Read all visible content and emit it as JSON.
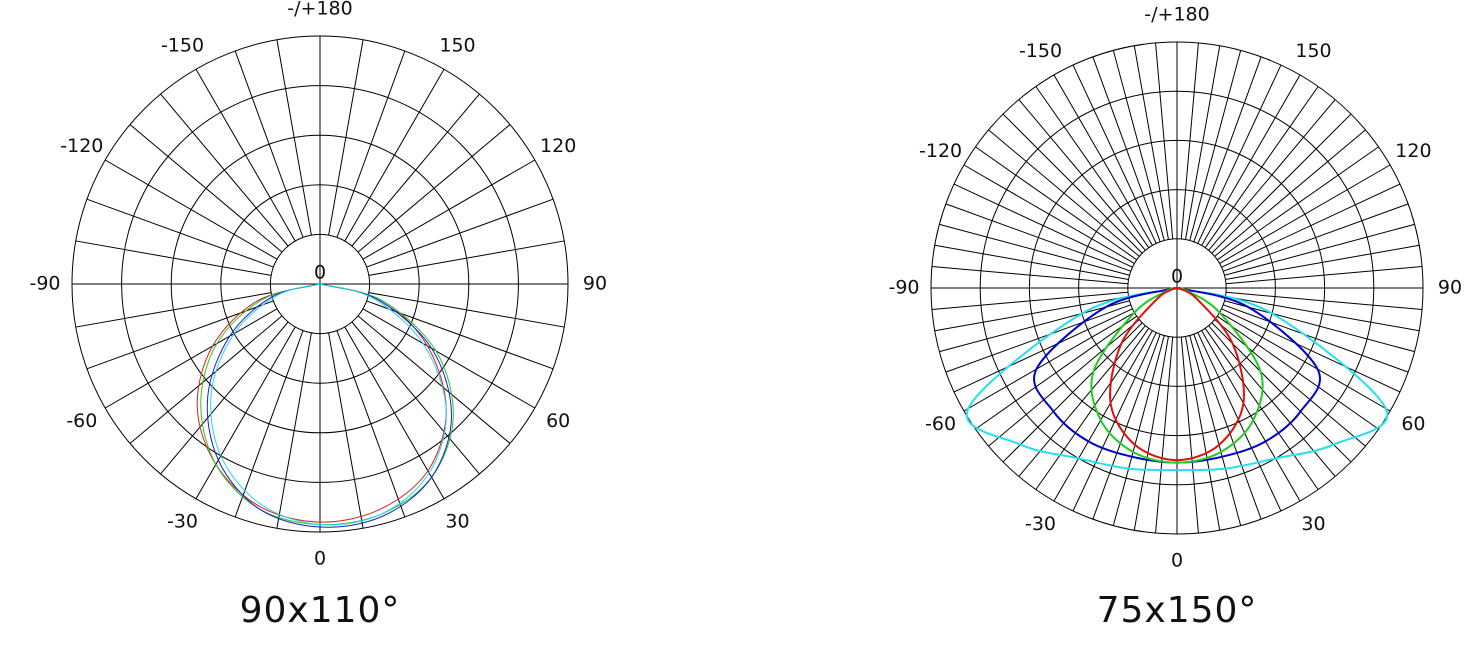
{
  "chart_data": [
    {
      "type": "polar",
      "title": "90x110°",
      "center_label": "0",
      "rlim": [
        0,
        5
      ],
      "rticks": [
        1,
        2,
        3,
        4,
        5
      ],
      "angular_grid_step": 10,
      "line_width": 1,
      "thetaticks": [
        {
          "value": 180,
          "label": "-/+180"
        },
        150,
        120,
        90,
        60,
        30,
        0,
        -30,
        -60,
        -90,
        -120,
        -150
      ],
      "theta": [
        -90,
        -75,
        -60,
        -45,
        -30,
        -15,
        0,
        15,
        30,
        45,
        60,
        75,
        90
      ],
      "series": [
        {
          "color": "#e02020",
          "values": [
            0,
            1.3,
            2.5,
            3.5,
            4.2,
            4.65,
            4.8,
            4.7,
            4.35,
            3.6,
            2.5,
            1.3,
            0
          ]
        },
        {
          "color": "#22cc22",
          "values": [
            0,
            1.2,
            2.4,
            3.4,
            4.2,
            4.7,
            4.85,
            4.8,
            4.5,
            3.8,
            2.7,
            1.3,
            0
          ]
        },
        {
          "color": "#2020cc",
          "values": [
            0,
            1.0,
            2.1,
            3.2,
            4.1,
            4.7,
            4.9,
            4.85,
            4.5,
            3.75,
            2.6,
            1.2,
            0
          ]
        },
        {
          "color": "#22d8e8",
          "values": [
            0,
            0.9,
            2.0,
            3.1,
            4.0,
            4.6,
            4.85,
            4.8,
            4.4,
            3.6,
            2.4,
            1.1,
            0
          ]
        }
      ]
    },
    {
      "type": "polar",
      "title": "75x150°",
      "center_label": "0",
      "rlim": [
        0,
        5
      ],
      "rticks": [
        1,
        2,
        3,
        4,
        5
      ],
      "angular_grid_step": 5,
      "line_width": 2,
      "thetaticks": [
        {
          "value": 180,
          "label": "-/+180"
        },
        150,
        120,
        90,
        60,
        30,
        0,
        -30,
        -60,
        -90,
        -120,
        -150
      ],
      "theta": [
        -90,
        -75,
        -60,
        -45,
        -30,
        -15,
        0,
        15,
        30,
        45,
        60,
        75,
        90
      ],
      "series": [
        {
          "color": "#22e0f0",
          "values": [
            0,
            2.0,
            4.9,
            4.5,
            4.0,
            3.8,
            3.7,
            3.8,
            4.0,
            4.5,
            4.9,
            2.0,
            0
          ]
        },
        {
          "color": "#0000cc",
          "values": [
            0,
            1.5,
            3.3,
            3.55,
            3.6,
            3.55,
            3.55,
            3.55,
            3.6,
            3.55,
            3.3,
            1.5,
            0
          ]
        },
        {
          "color": "#22cc22",
          "values": [
            0,
            0.2,
            1.0,
            2.4,
            3.1,
            3.45,
            3.55,
            3.45,
            3.1,
            2.4,
            1.0,
            0.2,
            0
          ]
        },
        {
          "color": "#e01010",
          "values": [
            0,
            0.1,
            0.5,
            1.6,
            2.7,
            3.3,
            3.5,
            3.3,
            2.7,
            1.6,
            0.5,
            0.1,
            0
          ]
        }
      ]
    }
  ]
}
